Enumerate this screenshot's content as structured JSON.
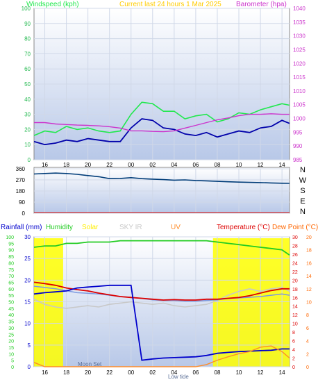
{
  "header": {
    "left_title": "Windspeed (kph)",
    "center_title": "Current last 24 hours 1 Mar 2025",
    "right_title": "Barometer (hpa)"
  },
  "colors": {
    "wind_gust": "#21e84e",
    "wind_avg": "#0000aa",
    "barometer": "#cc33cc",
    "direction": "#003c78",
    "rain": "#0000cc",
    "humidity": "#22cc22",
    "solar": "#ffff00",
    "sky": "#c8c8c8",
    "uv": "#ff8c28",
    "temperature": "#dd0000",
    "dewpoint": "#ff6600",
    "plot_bg_top": "#ffffff",
    "plot_bg_bottom": "#b8c8e8"
  },
  "x_ticks": [
    "16",
    "18",
    "20",
    "22",
    "00",
    "02",
    "04",
    "06",
    "08",
    "10",
    "12",
    "14"
  ],
  "chart_data": [
    {
      "type": "line",
      "x_hours": [
        15,
        16,
        17,
        18,
        19,
        20,
        21,
        22,
        23,
        24,
        25,
        26,
        27,
        28,
        29,
        30,
        31,
        32,
        33,
        34,
        35,
        36,
        37,
        38,
        38.7
      ],
      "y_left": {
        "title": "Windspeed (kph)",
        "ylim": [
          0,
          100
        ],
        "ticks": [
          0,
          10,
          20,
          30,
          40,
          50,
          60,
          70,
          80,
          90,
          100
        ]
      },
      "y_right": {
        "title": "Barometer (hpa)",
        "ylim": [
          985,
          1040
        ],
        "ticks": [
          985,
          990,
          995,
          1000,
          1005,
          1010,
          1015,
          1020,
          1025,
          1030,
          1035,
          1040
        ]
      },
      "series": [
        {
          "key": "gust",
          "axis": "left",
          "values": [
            16,
            19,
            18,
            22,
            20,
            21,
            19,
            18,
            19,
            30,
            38,
            37,
            32,
            32,
            27,
            29,
            30,
            25,
            27,
            31,
            30,
            33,
            35,
            37,
            36
          ]
        },
        {
          "key": "avg",
          "axis": "left",
          "values": [
            12,
            10,
            11,
            13,
            12,
            14,
            13,
            12,
            12,
            21,
            27,
            26,
            21,
            20,
            17,
            16,
            18,
            15,
            17,
            19,
            18,
            21,
            22,
            26,
            24
          ]
        },
        {
          "key": "pressure",
          "axis": "right",
          "values": [
            998.5,
            998.5,
            998,
            997.8,
            997.6,
            997.5,
            997.3,
            997.0,
            996.5,
            995.5,
            995.5,
            995.3,
            995.2,
            995.5,
            996.5,
            997.5,
            998.5,
            999.5,
            1000.2,
            1001,
            1001.5,
            1001.5,
            1001.7,
            1001.5,
            1001.5
          ]
        }
      ]
    },
    {
      "type": "line",
      "x_hours": [
        15,
        16,
        17,
        18,
        19,
        20,
        21,
        22,
        23,
        24,
        25,
        26,
        27,
        28,
        29,
        30,
        31,
        32,
        33,
        34,
        35,
        36,
        37,
        38,
        38.7
      ],
      "y_left": {
        "ylim": [
          0,
          360
        ],
        "ticks": [
          0,
          90,
          180,
          270,
          360
        ]
      },
      "y_right_labels": [
        "N",
        "W",
        "S",
        "E",
        "N"
      ],
      "series": [
        {
          "key": "direction",
          "values": [
            318,
            322,
            325,
            322,
            315,
            305,
            296,
            280,
            282,
            288,
            280,
            276,
            272,
            268,
            270,
            265,
            262,
            258,
            255,
            252,
            250,
            248,
            245,
            243,
            242
          ]
        }
      ]
    },
    {
      "type": "line",
      "x_hours": [
        15,
        16,
        17,
        18,
        19,
        20,
        21,
        22,
        23,
        24,
        25,
        26,
        27,
        28,
        29,
        30,
        31,
        32,
        33,
        34,
        35,
        36,
        37,
        38,
        38.7
      ],
      "y_left": {
        "ylim": [
          0,
          100
        ],
        "ticks": [
          0,
          5,
          10,
          15,
          20,
          25,
          30,
          35,
          40,
          45,
          50,
          55,
          60,
          65,
          70,
          75,
          80,
          85,
          90,
          95,
          100
        ]
      },
      "y_rain": {
        "ylim": [
          0,
          30
        ],
        "ticks": [
          0,
          5,
          10,
          15,
          20,
          25,
          30
        ]
      },
      "y_temp": {
        "title": "Temperature (°C)",
        "ylim": [
          0,
          30
        ],
        "ticks": [
          0,
          2,
          4,
          6,
          8,
          10,
          12,
          14,
          16,
          18,
          20,
          22,
          24,
          26,
          28,
          30
        ]
      },
      "y_dew": {
        "title": "Dew Point (°C)",
        "ylim": [
          0,
          20
        ],
        "ticks": [
          0,
          2,
          4,
          6,
          8,
          10,
          12,
          14,
          16,
          18,
          20
        ]
      },
      "legend": [
        "Rainfall (mm)",
        "Humidity",
        "Solar",
        "SKY  IR",
        "UV"
      ],
      "annotations": [
        "Moon Set",
        "Low tide"
      ],
      "series": [
        {
          "key": "humidity",
          "axis": "humidity",
          "values": [
            92,
            93,
            93,
            95,
            95,
            96,
            96,
            96,
            97,
            97,
            97,
            97,
            97,
            97,
            97,
            97,
            97,
            96,
            95,
            94,
            93,
            92,
            91,
            90,
            86
          ]
        },
        {
          "key": "temperature",
          "axis": "temp",
          "values": [
            19.5,
            19.2,
            18.8,
            18.2,
            17.8,
            17.5,
            17.0,
            16.6,
            16.2,
            16.0,
            15.8,
            15.6,
            15.4,
            15.5,
            15.4,
            15.4,
            15.6,
            15.6,
            15.8,
            16.0,
            16.4,
            17.0,
            17.6,
            18.0,
            18.0
          ]
        },
        {
          "key": "dewpoint",
          "axis": "dew",
          "values": [
            12.4,
            12.2,
            12.0,
            11.7,
            11.4,
            11.3,
            11.2,
            11.0,
            10.8,
            10.7,
            10.5,
            10.3,
            10.2,
            10.2,
            10.1,
            10.1,
            10.2,
            10.3,
            10.5,
            10.6,
            10.7,
            10.8,
            11.0,
            11.2,
            11.0
          ]
        },
        {
          "key": "sky",
          "axis": "humidity",
          "values": [
            52,
            48,
            46,
            45,
            46,
            47,
            46,
            48,
            49,
            50,
            49,
            48,
            49,
            47,
            46,
            47,
            48,
            51,
            55,
            58,
            60,
            58,
            60,
            61,
            58
          ]
        },
        {
          "key": "rain",
          "axis": "rain",
          "values": [
            16.8,
            17.1,
            17.3,
            17.5,
            18.2,
            18.4,
            18.6,
            18.8,
            18.8,
            18.8,
            1.5,
            1.8,
            2.0,
            2.1,
            2.2,
            2.3,
            2.6,
            3.1,
            3.3,
            3.5,
            3.6,
            3.7,
            3.8,
            4.1,
            4.1
          ]
        },
        {
          "key": "uv",
          "axis": "temp",
          "values": [
            1.0,
            0,
            0,
            0,
            0,
            0,
            0,
            0,
            0,
            0,
            0,
            0,
            0,
            0,
            0,
            0,
            0.5,
            1.5,
            2.3,
            3.0,
            3.5,
            4.5,
            4.8,
            3.5,
            2.0
          ]
        }
      ],
      "solar_daylight_hours": [
        [
          15,
          17.7
        ],
        [
          31.6,
          38.7
        ]
      ]
    }
  ]
}
